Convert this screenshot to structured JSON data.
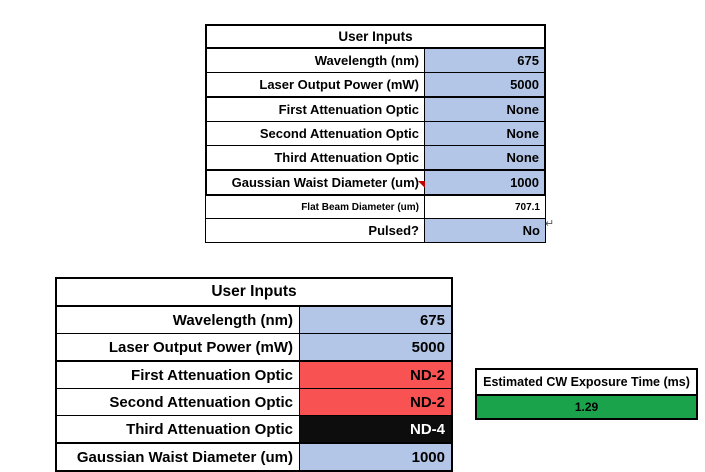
{
  "colors": {
    "input_blue": "#B4C6E7",
    "alert_red": "#F95252",
    "optic_black": "#0D0D0D",
    "result_green": "#1AA34A",
    "comment_red": "#C00000"
  },
  "top_table": {
    "title": "User Inputs",
    "rows": [
      {
        "label": "Wavelength (nm)",
        "value": "675"
      },
      {
        "label": "Laser Output Power (mW)",
        "value": "5000"
      },
      {
        "label": "First Attenuation Optic",
        "value": "None"
      },
      {
        "label": "Second Attenuation Optic",
        "value": "None"
      },
      {
        "label": "Third Attenuation Optic",
        "value": "None"
      },
      {
        "label": "Gaussian Waist Diameter (um)",
        "value": "1000"
      }
    ],
    "extra_rows": [
      {
        "label": "Flat Beam Diameter (um)",
        "value": "707.1"
      },
      {
        "label": "Pulsed?",
        "value": "No"
      }
    ]
  },
  "bottom_table": {
    "title": "User Inputs",
    "rows": [
      {
        "label": "Wavelength (nm)",
        "value": "675"
      },
      {
        "label": "Laser Output Power (mW)",
        "value": "5000"
      },
      {
        "label": "First Attenuation Optic",
        "value": "ND-2"
      },
      {
        "label": "Second Attenuation Optic",
        "value": "ND-2"
      },
      {
        "label": "Third Attenuation Optic",
        "value": "ND-4"
      },
      {
        "label": "Gaussian Waist Diameter (um)",
        "value": "1000"
      }
    ]
  },
  "result_box": {
    "title": "Estimated CW Exposure Time (ms)",
    "value": "1.29"
  },
  "marks": {
    "return_mark": "↵"
  }
}
